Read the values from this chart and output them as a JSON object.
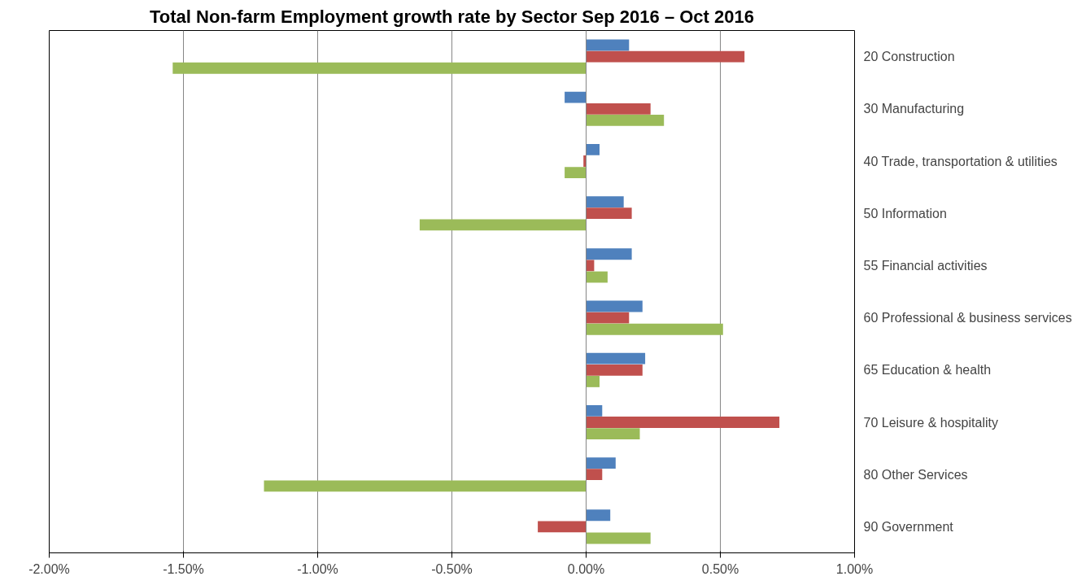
{
  "chart_data": {
    "type": "bar",
    "orientation": "horizontal",
    "title": "Total Non-farm Employment growth rate by Sector Sep 2016 – Oct 2016",
    "categories": [
      "20 Construction",
      "30 Manufacturing",
      "40 Trade, transportation & utilities",
      "50 Information",
      "55 Financial activities",
      "60 Professional & business services",
      "65 Education & health",
      "70 Leisure & hospitality",
      "80 Other Services",
      "90 Government"
    ],
    "series": [
      {
        "color": "#4f81bd",
        "values": [
          0.16,
          -0.08,
          0.05,
          0.14,
          0.17,
          0.21,
          0.22,
          0.06,
          0.11,
          0.09
        ]
      },
      {
        "color": "#c0504d",
        "values": [
          0.59,
          0.24,
          -0.01,
          0.17,
          0.03,
          0.16,
          0.21,
          0.72,
          0.06,
          -0.18
        ]
      },
      {
        "color": "#9bbb59",
        "values": [
          -1.54,
          0.29,
          -0.08,
          -0.62,
          0.08,
          0.51,
          0.05,
          0.2,
          -1.2,
          0.24
        ]
      }
    ],
    "xlim": [
      -2,
      1
    ],
    "xticks": [
      {
        "value": -2,
        "label": "-2.00%"
      },
      {
        "value": -1.5,
        "label": "-1.50%"
      },
      {
        "value": -1,
        "label": "-1.00%"
      },
      {
        "value": -0.5,
        "label": "-0.50%"
      },
      {
        "value": 0,
        "label": "0.00%"
      },
      {
        "value": 0.5,
        "label": "0.50%"
      },
      {
        "value": 1,
        "label": "1.00%"
      }
    ],
    "grid": "x"
  }
}
